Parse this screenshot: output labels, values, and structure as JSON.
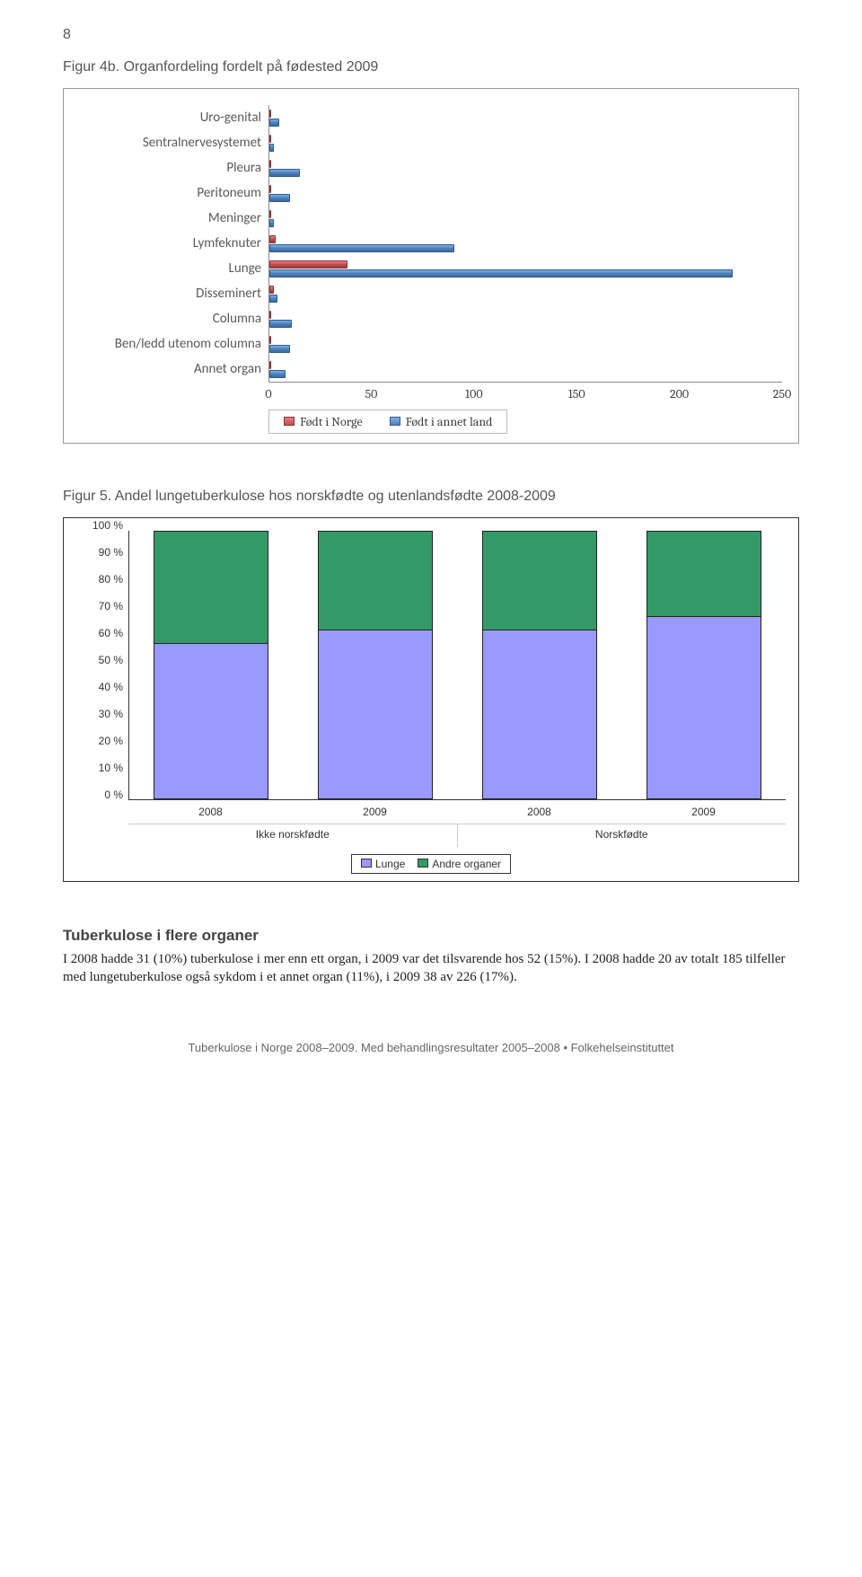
{
  "page_number": "8",
  "figure_4b": {
    "title": "Figur 4b. Organfordeling fordelt på fødested 2009",
    "categories": [
      "Uro-genital",
      "Sentralnervesystemet",
      "Pleura",
      "Peritoneum",
      "Meninger",
      "Lymfeknuter",
      "Lunge",
      "Disseminert",
      "Columna",
      "Ben/ledd utenom columna",
      "Annet organ"
    ],
    "series": {
      "norge": {
        "label": "Født i Norge",
        "color": "#c0504d",
        "values": [
          0,
          0,
          1,
          0,
          1,
          3,
          38,
          2,
          1,
          0,
          0
        ]
      },
      "annet": {
        "label": "Født i annet land",
        "color": "#4f81bd",
        "values": [
          5,
          2,
          15,
          10,
          2,
          90,
          226,
          4,
          11,
          10,
          8
        ]
      }
    },
    "xmax": 250,
    "xticks": [
      0,
      50,
      100,
      150,
      200,
      250
    ]
  },
  "figure_5": {
    "title": "Figur 5. Andel lungetuberkulose hos norskfødte og utenlandsfødte 2008-2009",
    "yticks": [
      "100 %",
      "90 %",
      "80 %",
      "70 %",
      "60 %",
      "50 %",
      "40 %",
      "30 %",
      "20 %",
      "10 %",
      "0 %"
    ],
    "columns": [
      {
        "year": "2008",
        "lunge_pct": 58
      },
      {
        "year": "2009",
        "lunge_pct": 63
      },
      {
        "year": "2008",
        "lunge_pct": 63
      },
      {
        "year": "2009",
        "lunge_pct": 68
      }
    ],
    "groups": [
      "Ikke norskfødte",
      "Norskfødte"
    ],
    "legend": {
      "bottom": "Lunge",
      "top": "Andre organer"
    },
    "colors": {
      "lunge": "#9999ff",
      "andre": "#339966"
    }
  },
  "section": {
    "heading": "Tuberkulose i flere organer",
    "body": "I 2008 hadde 31 (10%)  tuberkulose i mer enn ett organ, i 2009 var det tilsvarende hos 52 (15%). I 2008 hadde 20 av totalt 185 tilfeller med lungetuberkulose også sykdom i et annet organ (11%), i 2009 38 av 226 (17%)."
  },
  "footer": "Tuberkulose i Norge 2008–2009. Med behandlingsresultater 2005–2008 • Folkehelseinstituttet"
}
